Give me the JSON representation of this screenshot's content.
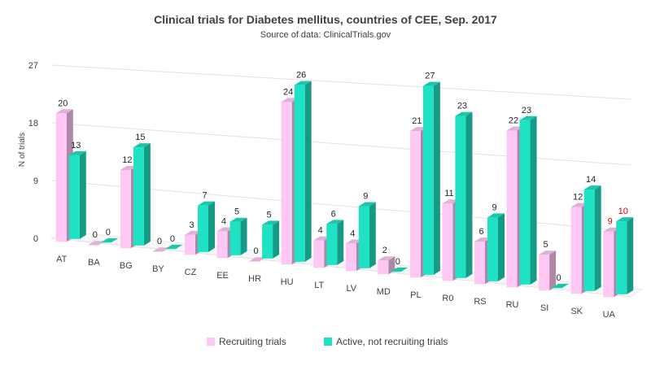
{
  "chart_data": {
    "type": "bar",
    "title": "Clinical trials for Diabetes mellitus, countries of CEE, Sep. 2017",
    "subtitle": "Source of data: ClinicalTrials.gov",
    "ylabel": "N of trials",
    "xlabel": "",
    "ylim": [
      0,
      27
    ],
    "yticks": [
      0,
      9,
      18,
      27
    ],
    "grid": true,
    "legend_position": "bottom",
    "categories": [
      "AT",
      "BA",
      "BG",
      "BY",
      "CZ",
      "EE",
      "HR",
      "HU",
      "LT",
      "LV",
      "MD",
      "PL",
      "R0",
      "RS",
      "RU",
      "SI",
      "SK",
      "UA"
    ],
    "series": [
      {
        "name": "Recruiting trials",
        "color": "#ffc8f4",
        "values": [
          20,
          0,
          12,
          0,
          3,
          4,
          0,
          24,
          4,
          4,
          2,
          21,
          11,
          6,
          22,
          5,
          12,
          9
        ]
      },
      {
        "name": "Active, not recruiting trials",
        "color": "#1fe2c4",
        "values": [
          13,
          0,
          15,
          0,
          7,
          5,
          5,
          26,
          6,
          9,
          0,
          27,
          23,
          9,
          23,
          0,
          14,
          10
        ]
      }
    ],
    "highlight_color": "#e00000",
    "highlighted_labels": [
      {
        "category": "UA",
        "series": 0
      },
      {
        "category": "UA",
        "series": 1
      }
    ]
  }
}
